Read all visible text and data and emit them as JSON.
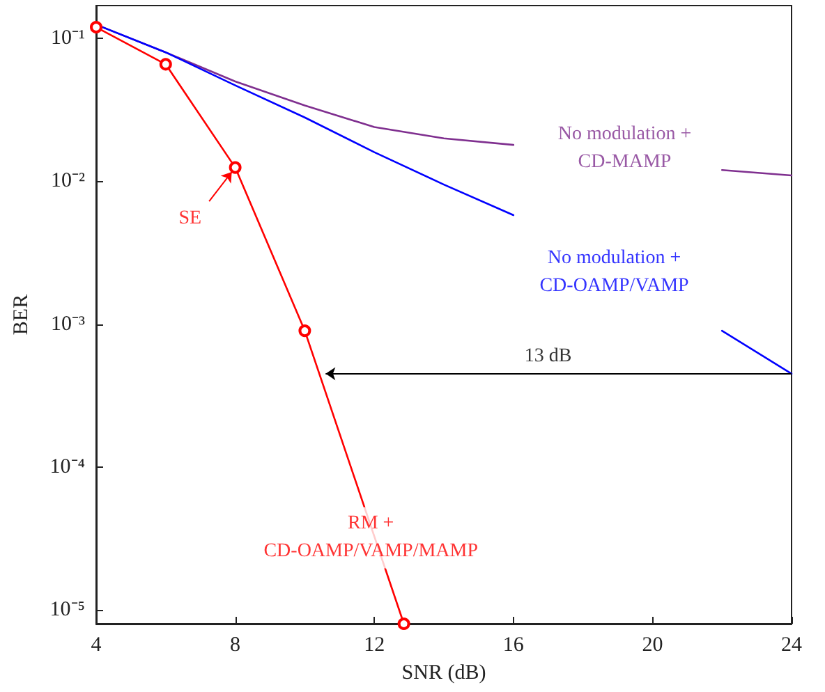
{
  "chart_data": {
    "type": "line",
    "xlabel": "SNR (dB)",
    "ylabel": "BER",
    "log": "y",
    "grid": false,
    "legend": false,
    "marker": "none",
    "line_style": "solid",
    "xlim": [
      4,
      24
    ],
    "xticks": [
      4,
      8,
      12,
      16,
      20,
      24
    ],
    "ylim": [
      8e-06,
      0.17
    ],
    "yticks": [
      {
        "value": 1e-05,
        "label": "10⁻⁵"
      },
      {
        "value": 0.0001,
        "label": "10⁻⁴"
      },
      {
        "value": 0.001,
        "label": "10⁻³"
      },
      {
        "value": 0.01,
        "label": "10⁻²"
      },
      {
        "value": 0.1,
        "label": "10⁻¹"
      }
    ],
    "x": [
      4,
      6,
      8,
      10,
      12,
      14,
      16,
      18,
      20,
      22,
      24
    ],
    "series": [
      {
        "name": "RM + CD-OAMP/VAMP/MAMP",
        "color": "#ff0000",
        "marker": "circle",
        "x": [
          4,
          6,
          8,
          10,
          12.85
        ],
        "values": [
          0.12,
          0.066,
          0.0125,
          0.0009,
          8e-06
        ]
      },
      {
        "name": "No modulation + CD-OAMP/VAMP",
        "color": "#0000ff",
        "values": [
          0.125,
          0.08,
          0.047,
          0.028,
          0.016,
          0.0095,
          0.0058,
          null,
          null,
          0.0009,
          0.00045
        ]
      },
      {
        "name": "No modulation + CD-MAMP",
        "color": "#7f2f8f",
        "values": [
          0.125,
          0.08,
          0.05,
          0.034,
          0.024,
          0.02,
          0.018,
          null,
          null,
          0.012,
          0.011
        ]
      }
    ],
    "annotations": [
      {
        "text": "SE",
        "x": 8,
        "y": 0.0125
      },
      "13 dB"
    ]
  }
}
